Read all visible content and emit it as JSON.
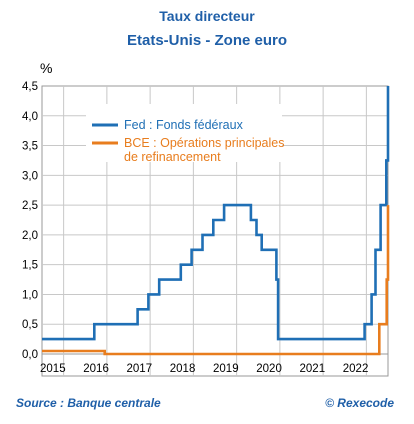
{
  "header": {
    "title_line1": "Taux directeur",
    "title_line2": "Etats-Unis - Zone euro"
  },
  "footer": {
    "source": "Source : Banque centrale",
    "credit": "© Rexecode"
  },
  "chart_data": {
    "type": "line",
    "title": "Taux directeur — Etats-Unis - Zone euro",
    "ylabel": "%",
    "xlabel": "",
    "xlim": [
      2014.75,
      2022.75
    ],
    "ylim": [
      0,
      4.5
    ],
    "yticks": [
      0,
      0.5,
      1,
      1.5,
      2,
      2.5,
      3,
      3.5,
      4,
      4.5
    ],
    "ytick_labels": [
      "0,0",
      "0,5",
      "1,0",
      "1,5",
      "2,0",
      "2,5",
      "3,0",
      "3,5",
      "4,0",
      "4,5"
    ],
    "xtick_labels": [
      "2015",
      "2016",
      "2017",
      "2018",
      "2019",
      "2020",
      "2021",
      "2022"
    ],
    "grid": true,
    "legend_position": "top-left",
    "series": [
      {
        "name": "Fed : Fonds fédéraux",
        "color": "#1f6fb5",
        "step": true,
        "points": [
          [
            2014.75,
            0.25
          ],
          [
            2015.96,
            0.5
          ],
          [
            2016.96,
            0.75
          ],
          [
            2017.21,
            1.0
          ],
          [
            2017.46,
            1.25
          ],
          [
            2017.96,
            1.5
          ],
          [
            2018.21,
            1.75
          ],
          [
            2018.46,
            2.0
          ],
          [
            2018.71,
            2.25
          ],
          [
            2018.96,
            2.5
          ],
          [
            2019.58,
            2.25
          ],
          [
            2019.71,
            2.0
          ],
          [
            2019.83,
            1.75
          ],
          [
            2020.17,
            1.25
          ],
          [
            2020.21,
            0.25
          ],
          [
            2022.21,
            0.5
          ],
          [
            2022.37,
            1.0
          ],
          [
            2022.46,
            1.75
          ],
          [
            2022.58,
            2.5
          ],
          [
            2022.71,
            3.25
          ],
          [
            2022.85,
            4.0
          ],
          [
            2022.97,
            4.5
          ],
          [
            2023.0,
            4.5
          ]
        ]
      },
      {
        "name": "BCE : Opérations principales de refinancement",
        "color": "#e87d1e",
        "step": true,
        "points": [
          [
            2014.75,
            0.05
          ],
          [
            2016.2,
            0.0
          ],
          [
            2022.55,
            0.5
          ],
          [
            2022.72,
            1.25
          ],
          [
            2022.85,
            2.0
          ],
          [
            2022.97,
            2.5
          ],
          [
            2023.0,
            2.5
          ]
        ]
      }
    ]
  }
}
